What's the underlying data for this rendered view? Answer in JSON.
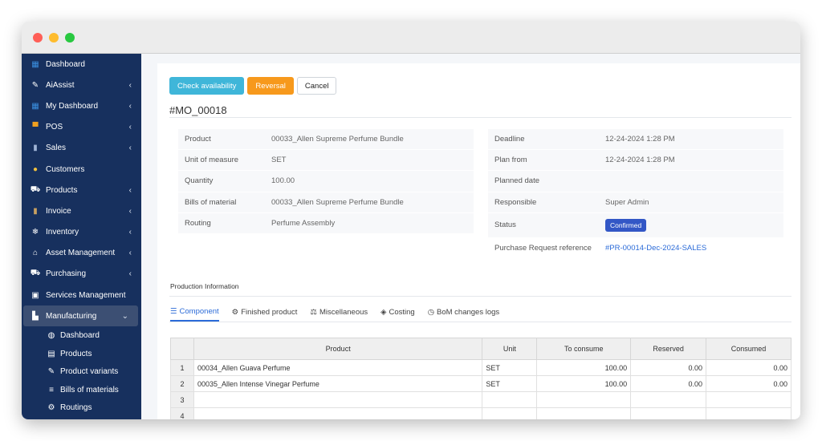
{
  "sidebar": {
    "items": [
      {
        "label": "Dashboard",
        "icon": "dashboard-icon",
        "glyph": "▦",
        "color": "#3b8fe0",
        "chevron": ""
      },
      {
        "label": "AiAssist",
        "icon": "pen-icon",
        "glyph": "✎",
        "color": "#ffffff",
        "chevron": "‹"
      },
      {
        "label": "My Dashboard",
        "icon": "grid-icon",
        "glyph": "▦",
        "color": "#3b8fe0",
        "chevron": "‹"
      },
      {
        "label": "POS",
        "icon": "cart-icon",
        "glyph": "▀",
        "color": "#f0a020",
        "chevron": "‹"
      },
      {
        "label": "Sales",
        "icon": "book-icon",
        "glyph": "▮",
        "color": "#9fb4d6",
        "chevron": "‹"
      },
      {
        "label": "Customers",
        "icon": "user-icon",
        "glyph": "●",
        "color": "#f0c040",
        "chevron": ""
      },
      {
        "label": "Products",
        "icon": "basket-icon",
        "glyph": "⛟",
        "color": "#ffffff",
        "chevron": "‹"
      },
      {
        "label": "Invoice",
        "icon": "invoice-icon",
        "glyph": "▮",
        "color": "#c8a060",
        "chevron": "‹"
      },
      {
        "label": "Inventory",
        "icon": "snowflake-icon",
        "glyph": "❄",
        "color": "#ffffff",
        "chevron": "‹"
      },
      {
        "label": "Asset Management",
        "icon": "bank-icon",
        "glyph": "⌂",
        "color": "#ffffff",
        "chevron": "‹"
      },
      {
        "label": "Purchasing",
        "icon": "basket-icon",
        "glyph": "⛟",
        "color": "#ffffff",
        "chevron": "‹"
      },
      {
        "label": "Services Management",
        "icon": "tv-icon",
        "glyph": "▣",
        "color": "#ffffff",
        "chevron": ""
      },
      {
        "label": "Manufacturing",
        "icon": "factory-icon",
        "glyph": "▙",
        "color": "#ffffff",
        "chevron": "⌄"
      }
    ],
    "subitems": [
      {
        "label": "Dashboard",
        "icon": "dashboard-icon",
        "glyph": "◍"
      },
      {
        "label": "Products",
        "icon": "table-icon",
        "glyph": "▤"
      },
      {
        "label": "Product variants",
        "icon": "edit-icon",
        "glyph": "✎"
      },
      {
        "label": "Bills of materials",
        "icon": "list-icon",
        "glyph": "≡"
      },
      {
        "label": "Routings",
        "icon": "gears-icon",
        "glyph": "⚙"
      }
    ]
  },
  "toolbar": {
    "check_label": "Check availability",
    "reversal_label": "Reversal",
    "cancel_label": "Cancel"
  },
  "mo": {
    "title": "#MO_00018",
    "left": [
      {
        "label": "Product",
        "value": "00033_Allen Supreme Perfume Bundle"
      },
      {
        "label": "Unit of measure",
        "value": "SET"
      },
      {
        "label": "Quantity",
        "value": "100.00"
      },
      {
        "label": "Bills of material",
        "value": "00033_Allen Supreme Perfume Bundle"
      },
      {
        "label": "Routing",
        "value": "Perfume Assembly"
      }
    ],
    "right": {
      "deadline_label": "Deadline",
      "deadline": "12-24-2024 1:28 PM",
      "plan_from_label": "Plan from",
      "plan_from": "12-24-2024 1:28 PM",
      "planned_date_label": "Planned date",
      "planned_date": "",
      "responsible_label": "Responsible",
      "responsible": "Super Admin",
      "status_label": "Status",
      "status": "Confirmed",
      "pr_label": "Purchase Request reference",
      "pr": "#PR-00014-Dec-2024-SALES"
    }
  },
  "production": {
    "section_title": "Production Information",
    "tabs": [
      {
        "label": "Component",
        "glyph": "☰"
      },
      {
        "label": "Finished product",
        "glyph": "⚙"
      },
      {
        "label": "Miscellaneous",
        "glyph": "⚖"
      },
      {
        "label": "Costing",
        "glyph": "◈"
      },
      {
        "label": "BoM changes logs",
        "glyph": "◷"
      }
    ],
    "columns": [
      "Product",
      "Unit",
      "To consume",
      "Reserved",
      "Consumed"
    ],
    "rows": [
      {
        "n": "1",
        "product": "00034_Allen Guava Perfume",
        "unit": "SET",
        "to_consume": "100.00",
        "reserved": "0.00",
        "consumed": "0.00"
      },
      {
        "n": "2",
        "product": "00035_Allen Intense Vinegar Perfume",
        "unit": "SET",
        "to_consume": "100.00",
        "reserved": "0.00",
        "consumed": "0.00"
      },
      {
        "n": "3",
        "product": "",
        "unit": "",
        "to_consume": "",
        "reserved": "",
        "consumed": ""
      },
      {
        "n": "4",
        "product": "",
        "unit": "",
        "to_consume": "",
        "reserved": "",
        "consumed": ""
      }
    ]
  }
}
